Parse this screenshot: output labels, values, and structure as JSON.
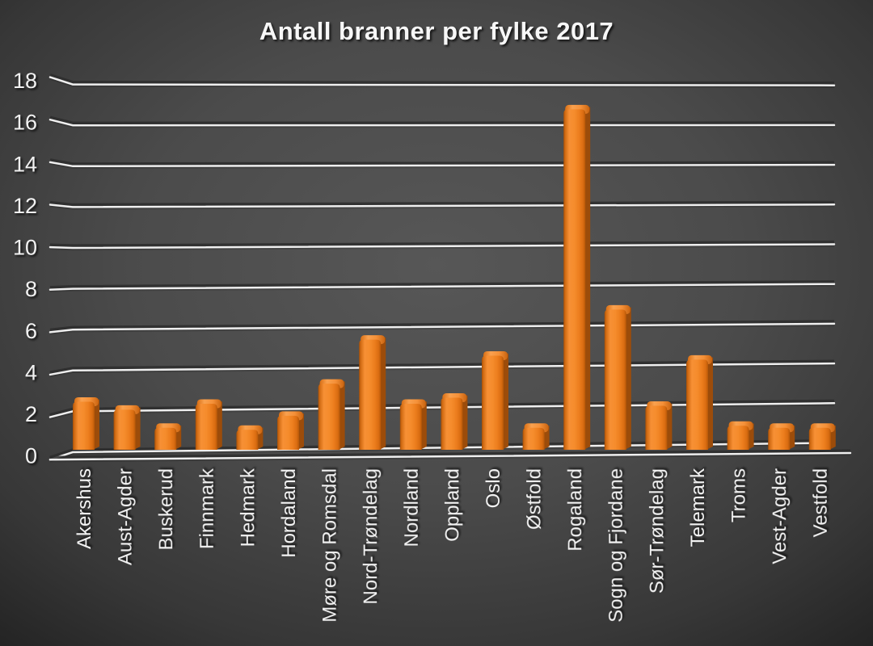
{
  "chart_data": {
    "type": "bar",
    "style": "3d-column",
    "title": "Antall branner per fylke 2017",
    "xlabel": "",
    "ylabel": "",
    "categories": [
      "Akershus",
      "Aust-Agder",
      "Buskerud",
      "Finnmark",
      "Hedmark",
      "Hordaland",
      "Møre og Romsdal",
      "Nord-Trøndelag",
      "Nordland",
      "Oppland",
      "Oslo",
      "Østfold",
      "Rogaland",
      "Sogn og Fjordane",
      "Sør-Trøndelag",
      "Telemark",
      "Troms",
      "Vest-Agder",
      "Vestfold"
    ],
    "values": [
      2.4,
      2.0,
      1.1,
      2.3,
      1.0,
      1.7,
      3.3,
      5.5,
      2.3,
      2.6,
      4.7,
      1.1,
      17.0,
      7.0,
      2.2,
      4.5,
      1.2,
      1.1,
      1.1
    ],
    "ylim": [
      0,
      18
    ],
    "yticks": [
      0,
      2,
      4,
      6,
      8,
      10,
      12,
      14,
      16,
      18
    ],
    "grid": true,
    "legend": false,
    "colors": {
      "bar_main": "#ED7D31",
      "bar_light": "#F9A14F",
      "bar_dark": "#9C4C0A",
      "gridline": "#EFEFEF",
      "gridline_shadow": "#2D2D2D",
      "text": "#F2F2F2",
      "background_center": "#555555",
      "background_edge": "#232323"
    }
  }
}
